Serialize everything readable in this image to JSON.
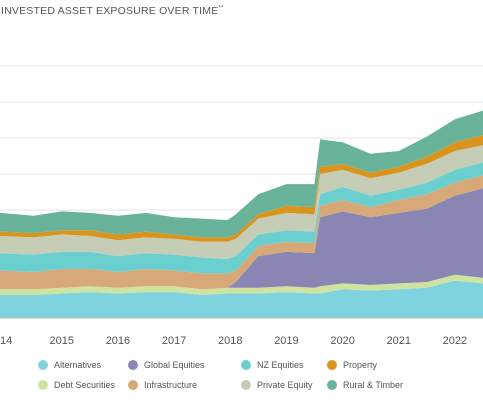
{
  "chart_data": {
    "type": "area",
    "stacked": true,
    "title": "INVESTED ASSET EXPOSURE OVER TIME",
    "title_marker": "**",
    "xlabel": "",
    "ylabel": "",
    "x_ticks": [
      "14",
      "2015",
      "2016",
      "2017",
      "2018",
      "2019",
      "2020",
      "2021",
      "2022"
    ],
    "grid": "horizontal",
    "legend_position": "bottom",
    "x": [
      2013.9,
      2014.5,
      2015.0,
      2015.5,
      2016.0,
      2016.5,
      2017.0,
      2017.5,
      2017.95,
      2018.1,
      2018.5,
      2019.0,
      2019.5,
      2019.6,
      2020.0,
      2020.5,
      2021.0,
      2021.5,
      2022.0,
      2022.5
    ],
    "series": [
      {
        "name": "Alternatives",
        "color": "#7fd3df",
        "values": [
          16,
          16,
          17,
          18,
          17,
          18,
          18,
          16,
          17,
          17,
          17,
          18,
          17,
          17,
          20,
          19,
          20,
          21,
          26,
          24
        ]
      },
      {
        "name": "Debt Securities",
        "color": "#cfe3a0",
        "values": [
          4,
          4,
          4,
          4,
          4,
          4,
          4,
          4,
          4,
          4,
          4,
          4,
          4,
          5,
          4,
          4,
          4,
          4,
          4,
          4
        ]
      },
      {
        "name": "Global Equities",
        "color": "#8a86b4",
        "values": [
          0,
          0,
          0,
          0,
          0,
          0,
          0,
          0,
          0,
          4,
          22,
          24,
          24,
          48,
          50,
          47,
          49,
          51,
          55,
          62
        ]
      },
      {
        "name": "Infrastructure",
        "color": "#d8a978",
        "values": [
          13,
          12,
          13,
          12,
          11,
          12,
          11,
          11,
          10,
          8,
          7,
          7,
          7,
          8,
          8,
          7,
          9,
          10,
          9,
          9
        ]
      },
      {
        "name": "NZ Equities",
        "color": "#6ccfcf",
        "values": [
          12,
          12,
          12,
          12,
          11,
          11,
          11,
          11,
          10,
          10,
          8,
          8,
          8,
          8,
          9,
          8,
          7,
          8,
          9,
          9
        ]
      },
      {
        "name": "Private Equity",
        "color": "#c5cdb7",
        "values": [
          12,
          12,
          12,
          11,
          11,
          11,
          11,
          11,
          12,
          12,
          11,
          12,
          12,
          14,
          12,
          12,
          12,
          13,
          13,
          12
        ]
      },
      {
        "name": "Property",
        "color": "#d9941e",
        "values": [
          3,
          3,
          3,
          4,
          4,
          4,
          3,
          3,
          3,
          3,
          3,
          5,
          5,
          5,
          4,
          4,
          4,
          5,
          6,
          7
        ]
      },
      {
        "name": "Rural & Timber",
        "color": "#69b39a",
        "values": [
          13,
          12,
          13,
          12,
          13,
          13,
          12,
          13,
          12,
          14,
          14,
          15,
          16,
          19,
          15,
          13,
          11,
          14,
          16,
          17
        ]
      }
    ],
    "ylim": [
      0,
      200
    ]
  },
  "legend_order": [
    "Alternatives",
    "Global Equities",
    "NZ Equities",
    "Property",
    "Debt Securities",
    "Infrastructure",
    "Private Equity",
    "Rural & Timber"
  ]
}
